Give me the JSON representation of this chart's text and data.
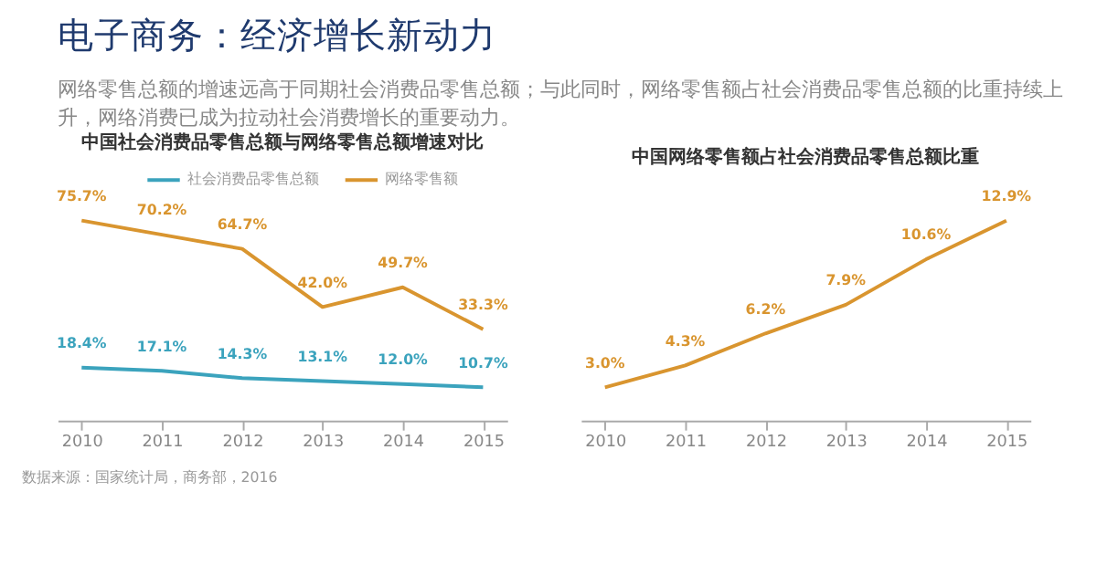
{
  "chart_data": [
    {
      "type": "line",
      "title": "中国社会消费品零售总额与网络零售总额增速对比",
      "annotations": [
        "电子商务：经济增长新动力",
        "网络零售总额的增速远高于同期社会消费品零售总额；与此同时，网络零售额占社会消费品零售总额的比重持续上升，网络消费已成为拉动社会消费增长的重要动力。",
        "数据来源：国家统计局，商务部，2016"
      ],
      "categories": [
        "2010",
        "2011",
        "2012",
        "2013",
        "2014",
        "2015"
      ],
      "series": [
        {
          "name": "社会消费品零售总额",
          "color": "#3ba3bd",
          "values": [
            18.4,
            17.1,
            14.3,
            13.1,
            12.0,
            10.7
          ],
          "value_labels": [
            "18.4%",
            "17.1%",
            "14.3%",
            "13.1%",
            "12.0%",
            "10.7%"
          ]
        },
        {
          "name": "网络零售额",
          "color": "#d9952f",
          "values": [
            75.7,
            70.2,
            64.7,
            42.0,
            49.7,
            33.3
          ],
          "value_labels": [
            "75.7%",
            "70.2%",
            "64.7%",
            "42.0%",
            "49.7%",
            "33.3%"
          ]
        }
      ],
      "legend": "top",
      "tick_labels": "x"
    },
    {
      "type": "line",
      "title": "中国网络零售额占社会消费品零售总额比重",
      "categories": [
        "2010",
        "2011",
        "2012",
        "2013",
        "2014",
        "2015"
      ],
      "series": [
        {
          "color": "#d9952f",
          "values": [
            3.0,
            4.3,
            6.2,
            7.9,
            10.6,
            12.9
          ],
          "value_labels": [
            "3.0%",
            "4.3%",
            "6.2%",
            "7.9%",
            "10.6%",
            "12.9%"
          ]
        }
      ],
      "tick_labels": "x"
    }
  ]
}
